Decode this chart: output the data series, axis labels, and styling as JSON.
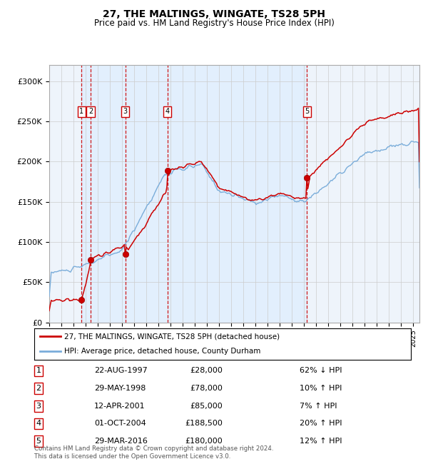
{
  "title": "27, THE MALTINGS, WINGATE, TS28 5PH",
  "subtitle": "Price paid vs. HM Land Registry's House Price Index (HPI)",
  "legend_line1": "27, THE MALTINGS, WINGATE, TS28 5PH (detached house)",
  "legend_line2": "HPI: Average price, detached house, County Durham",
  "footer_line1": "Contains HM Land Registry data © Crown copyright and database right 2024.",
  "footer_line2": "This data is licensed under the Open Government Licence v3.0.",
  "sale_events": [
    {
      "id": 1,
      "date": "22-AUG-1997",
      "price": 28000,
      "pct": "62%",
      "dir": "↓",
      "x": 1997.65
    },
    {
      "id": 2,
      "date": "29-MAY-1998",
      "price": 78000,
      "pct": "10%",
      "dir": "↑",
      "x": 1998.41
    },
    {
      "id": 3,
      "date": "12-APR-2001",
      "price": 85000,
      "pct": "7%",
      "dir": "↑",
      "x": 2001.28
    },
    {
      "id": 4,
      "date": "01-OCT-2004",
      "price": 188500,
      "pct": "20%",
      "dir": "↑",
      "x": 2004.75
    },
    {
      "id": 5,
      "date": "29-MAR-2016",
      "price": 180000,
      "pct": "12%",
      "dir": "↑",
      "x": 2016.24
    }
  ],
  "hpi_color": "#7aadda",
  "price_color": "#cc0000",
  "vline_color": "#cc0000",
  "shade_color": "#ddeeff",
  "background_color": "#eef4fb",
  "ylim": [
    0,
    320000
  ],
  "xlim": [
    1995.0,
    2025.5
  ],
  "yticks": [
    0,
    50000,
    100000,
    150000,
    200000,
    250000,
    300000
  ],
  "ytick_labels": [
    "£0",
    "£50K",
    "£100K",
    "£150K",
    "£200K",
    "£250K",
    "£300K"
  ]
}
